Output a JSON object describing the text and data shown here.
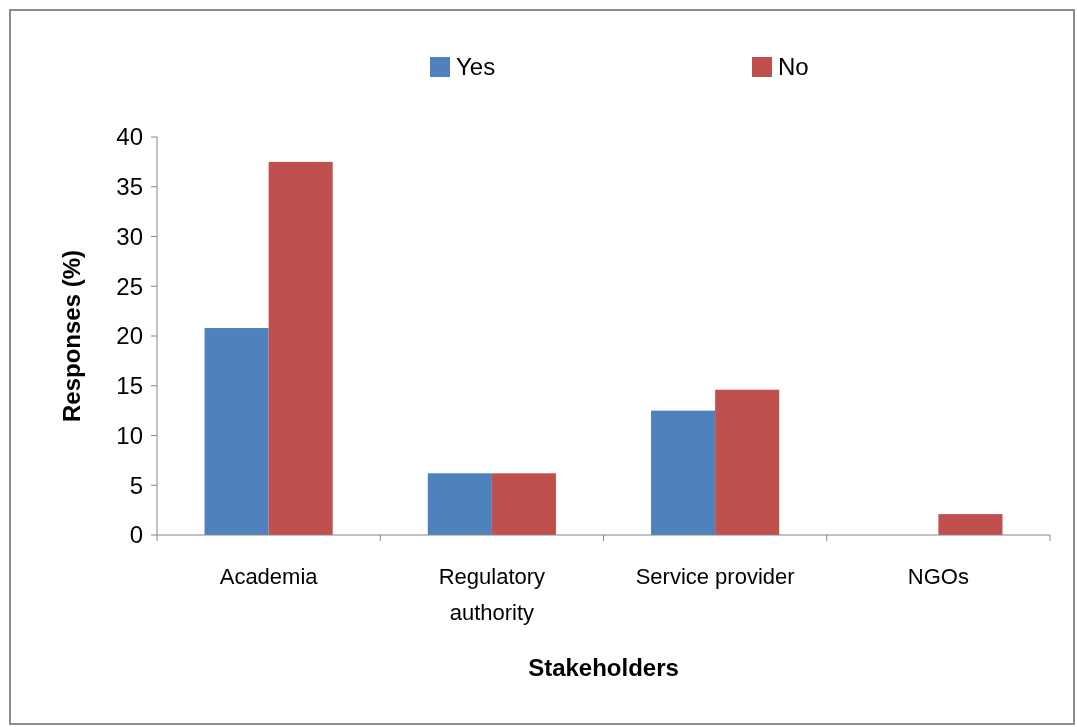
{
  "chart_data": {
    "type": "bar",
    "xlabel": "Stakeholders",
    "ylabel": "Responses (%)",
    "categories": [
      "Academia",
      "Regulatory authority",
      "Service provider",
      "NGOs"
    ],
    "series": [
      {
        "name": "Yes",
        "color": "#4f81bd",
        "values": [
          20.8,
          6.2,
          12.5,
          null
        ]
      },
      {
        "name": "No",
        "color": "#c0504d",
        "values": [
          37.5,
          6.2,
          14.6,
          2.1
        ]
      }
    ],
    "ylim": [
      0,
      40
    ],
    "yticks": [
      0,
      5,
      10,
      15,
      20,
      25,
      30,
      35,
      40
    ],
    "legend": "top",
    "grid": false
  }
}
